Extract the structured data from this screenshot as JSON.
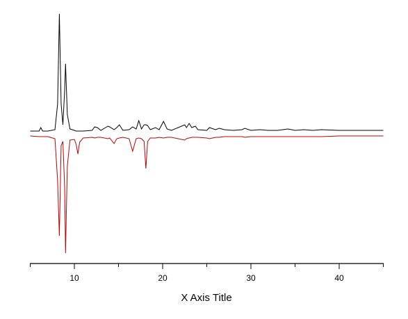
{
  "chart_data": {
    "type": "line",
    "x_label": "X Axis Title",
    "xlim": [
      5,
      45
    ],
    "xticks": [
      10,
      20,
      30,
      40
    ],
    "minor_xticks": [
      5,
      15,
      25,
      35,
      45
    ],
    "ylim": [
      0,
      360
    ],
    "x": [
      5,
      6,
      6.2,
      6.4,
      7,
      7.8,
      8.1,
      8.3,
      8.5,
      8.7,
      8.9,
      9.0,
      9.2,
      9.5,
      10,
      10.2,
      10.4,
      10.6,
      11,
      12,
      12.3,
      12.6,
      13,
      13.8,
      14,
      14.5,
      14.8,
      15.1,
      15.5,
      16.2,
      16.6,
      17,
      17.3,
      17.6,
      17.9,
      18.1,
      18.3,
      18.6,
      19.2,
      19.6,
      20.1,
      20.5,
      21,
      22.5,
      22.7,
      23,
      23.3,
      23.7,
      24,
      25,
      25.3,
      26,
      26.4,
      27,
      28,
      29,
      29.3,
      30,
      31,
      32,
      33,
      34.2,
      35,
      36,
      37,
      38,
      40,
      41,
      42,
      43,
      44,
      45
    ],
    "series": [
      {
        "color": "#000000",
        "values": [
          191,
          191,
          196,
          191,
          191,
          193,
          230,
          360,
          230,
          200,
          250,
          288,
          215,
          194,
          192,
          191,
          191,
          191,
          191,
          192,
          197,
          196,
          192,
          198,
          197,
          193,
          196,
          200,
          192,
          193,
          197,
          194,
          206,
          194,
          200,
          200,
          199,
          193,
          196,
          193,
          205,
          194,
          192,
          200,
          196,
          202,
          196,
          198,
          193,
          192,
          196,
          193,
          195,
          193,
          192,
          193,
          195,
          192,
          193,
          192,
          192,
          194,
          192,
          193,
          192,
          193,
          192,
          192,
          192,
          192,
          192,
          192
        ]
      },
      {
        "color": "#c00000",
        "values": [
          184,
          183,
          183,
          183,
          183,
          180,
          120,
          40,
          170,
          176,
          110,
          15,
          140,
          178,
          179,
          172,
          158,
          175,
          181,
          182,
          181,
          182,
          182,
          180,
          181,
          173,
          180,
          181,
          182,
          180,
          162,
          180,
          181,
          180,
          176,
          137,
          176,
          181,
          181,
          182,
          181,
          182,
          182,
          178,
          180,
          181,
          182,
          182,
          182,
          181,
          180,
          182,
          182,
          183,
          183,
          183,
          182,
          183,
          183,
          183,
          183,
          183,
          183,
          183,
          183,
          183,
          184,
          184,
          184,
          184,
          184,
          184
        ]
      }
    ]
  }
}
